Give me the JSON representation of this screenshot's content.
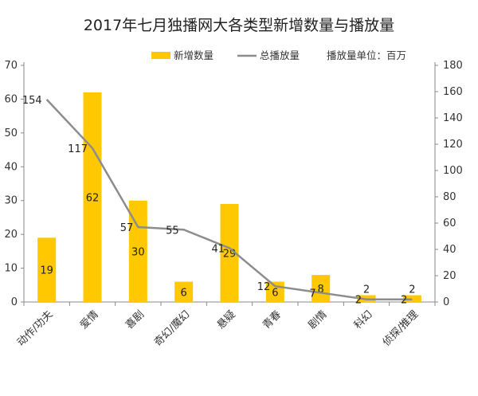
{
  "chart_data": {
    "type": "bar+line",
    "title": "2017年七月独播网大各类型新增数量与播放量",
    "categories": [
      "动作/功夫",
      "爱情",
      "喜剧",
      "奇幻/魔幻",
      "悬疑",
      "青春",
      "剧情",
      "科幻",
      "侦探/推理"
    ],
    "series": [
      {
        "name": "新增数量",
        "type": "bar",
        "axis": "left",
        "values": [
          19,
          62,
          30,
          6,
          29,
          6,
          8,
          2,
          2
        ],
        "color": "#FFC800"
      },
      {
        "name": "总播放量",
        "type": "line",
        "axis": "right",
        "values": [
          154,
          117,
          57,
          55,
          41,
          12,
          7,
          2,
          2
        ],
        "color": "#8C8C8C"
      }
    ],
    "y_left": {
      "min": 0,
      "max": 70,
      "ticks": [
        0,
        10,
        20,
        30,
        40,
        50,
        60,
        70
      ]
    },
    "y_right": {
      "min": 0,
      "max": 180,
      "ticks": [
        0,
        20,
        40,
        60,
        80,
        100,
        120,
        140,
        160,
        180
      ]
    },
    "unit_note": "播放量单位：百万",
    "legend_position": "top"
  }
}
